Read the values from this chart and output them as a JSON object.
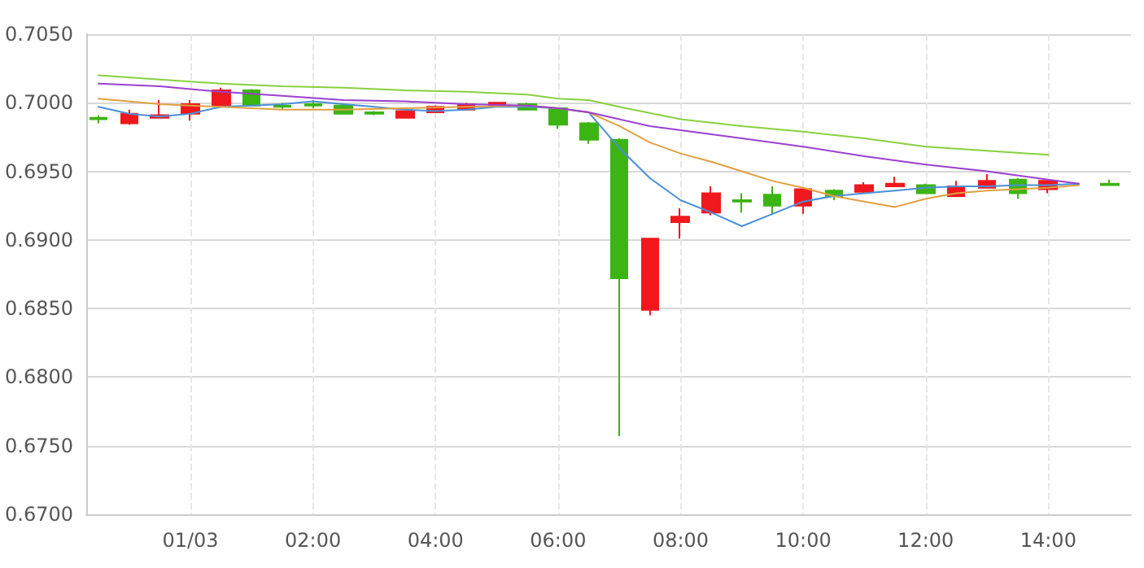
{
  "chart_data": {
    "type": "candlestick",
    "x": [
      "--01-02T22:30",
      "--01-02T23:00",
      "--01-02T23:30",
      "--01-03T00:00",
      "--01-03T00:30",
      "--01-03T01:00",
      "--01-03T01:30",
      "--01-03T02:00",
      "--01-03T02:30",
      "--01-03T03:00",
      "--01-03T03:30",
      "--01-03T04:00",
      "--01-03T04:30",
      "--01-03T05:00",
      "--01-03T05:30",
      "--01-03T06:00",
      "--01-03T06:30",
      "--01-03T07:00",
      "--01-03T07:30",
      "--01-03T08:00",
      "--01-03T08:30",
      "--01-03T09:00",
      "--01-03T09:30",
      "--01-03T10:00",
      "--01-03T10:30",
      "--01-03T11:00",
      "--01-03T11:30",
      "--01-03T12:00",
      "--01-03T12:30",
      "--01-03T13:00",
      "--01-03T13:30",
      "--01-03T14:00",
      "--01-03T15:00"
    ],
    "ohlc": [
      [
        0.6989,
        0.6991,
        0.6985,
        0.6988
      ],
      [
        0.6985,
        0.6995,
        0.6984,
        0.6992
      ],
      [
        0.6989,
        0.7002,
        0.6989,
        0.6991
      ],
      [
        0.6992,
        0.7002,
        0.6987,
        0.6999
      ],
      [
        0.6998,
        0.7011,
        0.6998,
        0.7009
      ],
      [
        0.7009,
        0.701,
        0.6998,
        0.6998
      ],
      [
        0.6998,
        0.7,
        0.6995,
        0.6997
      ],
      [
        0.6999,
        0.7002,
        0.6996,
        0.6998
      ],
      [
        0.6998,
        0.6999,
        0.6992,
        0.6992
      ],
      [
        0.6993,
        0.6994,
        0.6991,
        0.6992
      ],
      [
        0.6989,
        0.6994,
        0.6989,
        0.6994
      ],
      [
        0.6993,
        0.6998,
        0.6993,
        0.6997
      ],
      [
        0.6995,
        0.7,
        0.6995,
        0.6999
      ],
      [
        0.6998,
        0.7,
        0.6998,
        0.7
      ],
      [
        0.6999,
        0.7,
        0.6995,
        0.6995
      ],
      [
        0.6996,
        0.6996,
        0.6981,
        0.6984
      ],
      [
        0.6985,
        0.6986,
        0.697,
        0.6973
      ],
      [
        0.6973,
        0.6974,
        0.6757,
        0.6872
      ],
      [
        0.6849,
        0.6901,
        0.6845,
        0.6901
      ],
      [
        0.6913,
        0.6923,
        0.6901,
        0.6917
      ],
      [
        0.692,
        0.6939,
        0.6918,
        0.6934
      ],
      [
        0.6929,
        0.6934,
        0.692,
        0.6928
      ],
      [
        0.6933,
        0.6939,
        0.6919,
        0.6925
      ],
      [
        0.6925,
        0.6937,
        0.6919,
        0.6937
      ],
      [
        0.6936,
        0.6937,
        0.6929,
        0.6932
      ],
      [
        0.6935,
        0.6942,
        0.6934,
        0.694
      ],
      [
        0.6939,
        0.6946,
        0.6939,
        0.6941
      ],
      [
        0.694,
        0.6941,
        0.6934,
        0.6934
      ],
      [
        0.6932,
        0.6943,
        0.6932,
        0.6939
      ],
      [
        0.6938,
        0.6948,
        0.6938,
        0.6943
      ],
      [
        0.6944,
        0.6945,
        0.693,
        0.6934
      ],
      [
        0.6937,
        0.6943,
        0.6934,
        0.6943
      ],
      [
        0.6941,
        0.6944,
        0.694,
        0.694
      ]
    ],
    "colors": [
      "#3cb414",
      "#f0181c",
      "#f0181c",
      "#f0181c",
      "#f0181c",
      "#3cb414",
      "#3cb414",
      "#3cb414",
      "#3cb414",
      "#3cb414",
      "#f0181c",
      "#f0181c",
      "#f0181c",
      "#f0181c",
      "#3cb414",
      "#3cb414",
      "#3cb414",
      "#3cb414",
      "#f0181c",
      "#f0181c",
      "#f0181c",
      "#3cb414",
      "#3cb414",
      "#f0181c",
      "#3cb414",
      "#f0181c",
      "#f0181c",
      "#3cb414",
      "#f0181c",
      "#f0181c",
      "#3cb414",
      "#f0181c",
      "#3cb414"
    ],
    "series": [
      {
        "type": "line",
        "color": "#4a90d9",
        "x": [
          "--01-02T22:30",
          "--01-02T23:00",
          "--01-02T23:30",
          "--01-03T00:00",
          "--01-03T00:30",
          "--01-03T01:00",
          "--01-03T01:30",
          "--01-03T02:00",
          "--01-03T02:30",
          "--01-03T03:00",
          "--01-03T03:30",
          "--01-03T04:00",
          "--01-03T04:30",
          "--01-03T05:00",
          "--01-03T05:30",
          "--01-03T06:00",
          "--01-03T06:30",
          "--01-03T07:00",
          "--01-03T07:30",
          "--01-03T08:00",
          "--01-03T08:30",
          "--01-03T09:00",
          "--01-03T09:30",
          "--01-03T10:00",
          "--01-03T10:30",
          "--01-03T11:00",
          "--01-03T11:30",
          "--01-03T12:00",
          "--01-03T12:30",
          "--01-03T13:00",
          "--01-03T13:30",
          "--01-03T14:00",
          "--01-03T14:30"
        ],
        "values": [
          0.6997,
          0.6992,
          0.699,
          0.6992,
          0.6997,
          0.6998,
          0.6999,
          0.7001,
          0.6999,
          0.6997,
          0.6995,
          0.6994,
          0.6995,
          0.6997,
          0.6997,
          0.6996,
          0.6993,
          0.6967,
          0.6945,
          0.6929,
          0.692,
          0.691,
          0.6919,
          0.6928,
          0.6932,
          0.6934,
          0.6936,
          0.6938,
          0.6939,
          0.6939,
          0.694,
          0.694,
          0.6941
        ]
      },
      {
        "type": "line",
        "color": "#e0a040",
        "x": [
          "--01-02T22:30",
          "--01-02T23:30",
          "--01-03T00:30",
          "--01-03T01:30",
          "--01-03T02:30",
          "--01-03T03:30",
          "--01-03T04:30",
          "--01-03T05:30",
          "--01-03T06:00",
          "--01-03T06:30",
          "--01-03T07:00",
          "--01-03T07:30",
          "--01-03T08:00",
          "--01-03T08:30",
          "--01-03T09:00",
          "--01-03T09:30",
          "--01-03T10:00",
          "--01-03T10:30",
          "--01-03T11:00",
          "--01-03T11:30",
          "--01-03T12:00",
          "--01-03T12:30",
          "--01-03T13:00",
          "--01-03T13:30",
          "--01-03T14:00",
          "--01-03T14:30"
        ],
        "values": [
          0.7003,
          0.6999,
          0.6997,
          0.6995,
          0.6995,
          0.6996,
          0.6997,
          0.6998,
          0.6996,
          0.6993,
          0.6983,
          0.6971,
          0.6963,
          0.6957,
          0.695,
          0.6943,
          0.6938,
          0.6932,
          0.6928,
          0.6924,
          0.693,
          0.6934,
          0.6936,
          0.6937,
          0.6938,
          0.694
        ]
      },
      {
        "type": "line",
        "color": "#9b40d0",
        "x": [
          "--01-02T22:30",
          "--01-02T23:30",
          "--01-03T00:30",
          "--01-03T01:30",
          "--01-03T02:30",
          "--01-03T03:30",
          "--01-03T04:30",
          "--01-03T05:30",
          "--01-03T06:00",
          "--01-03T06:30",
          "--01-03T07:00",
          "--01-03T07:30",
          "--01-03T08:00",
          "--01-03T09:00",
          "--01-03T10:00",
          "--01-03T11:00",
          "--01-03T12:00",
          "--01-03T13:00",
          "--01-03T14:00",
          "--01-03T14:30"
        ],
        "values": [
          0.7014,
          0.7012,
          0.7008,
          0.7005,
          0.7002,
          0.7001,
          0.6999,
          0.6998,
          0.6996,
          0.6993,
          0.6988,
          0.6983,
          0.698,
          0.6974,
          0.6968,
          0.6961,
          0.6955,
          0.695,
          0.6944,
          0.6941
        ]
      },
      {
        "type": "line",
        "color": "#88d040",
        "x": [
          "--01-02T22:30",
          "--01-02T23:30",
          "--01-03T00:30",
          "--01-03T01:30",
          "--01-03T02:30",
          "--01-03T03:30",
          "--01-03T04:30",
          "--01-03T05:30",
          "--01-03T06:00",
          "--01-03T06:30",
          "--01-03T07:00",
          "--01-03T08:00",
          "--01-03T09:00",
          "--01-03T10:00",
          "--01-03T11:00",
          "--01-03T12:00",
          "--01-03T13:00",
          "--01-03T14:00"
        ],
        "values": [
          0.702,
          0.7017,
          0.7014,
          0.7012,
          0.7011,
          0.7009,
          0.7008,
          0.7006,
          0.7003,
          0.7002,
          0.6997,
          0.6988,
          0.6983,
          0.6979,
          0.6974,
          0.6968,
          0.6965,
          0.6962
        ]
      }
    ],
    "xlim": [
      "--01-02T22:18",
      "--01-03T15:21"
    ],
    "xticks": [
      {
        "value": "--01-03T00:00",
        "label": "01/03"
      },
      {
        "value": "--01-03T02:00",
        "label": "02:00"
      },
      {
        "value": "--01-03T04:00",
        "label": "04:00"
      },
      {
        "value": "--01-03T06:00",
        "label": "06:00"
      },
      {
        "value": "--01-03T08:00",
        "label": "08:00"
      },
      {
        "value": "--01-03T10:00",
        "label": "10:00"
      },
      {
        "value": "--01-03T12:00",
        "label": "12:00"
      },
      {
        "value": "--01-03T14:00",
        "label": "14:00"
      }
    ],
    "ylim": [
      0.67,
      0.705
    ],
    "yticks": [
      {
        "value": 0.67,
        "label": "0.6700"
      },
      {
        "value": 0.675,
        "label": "0.6750"
      },
      {
        "value": 0.68,
        "label": "0.6800"
      },
      {
        "value": 0.685,
        "label": "0.6850"
      },
      {
        "value": 0.69,
        "label": "0.6900"
      },
      {
        "value": 0.695,
        "label": "0.6950"
      },
      {
        "value": 0.7,
        "label": "0.7000"
      },
      {
        "value": 0.705,
        "label": "0.7050"
      }
    ],
    "grid": true,
    "marker": "none",
    "line_style": "solid"
  }
}
